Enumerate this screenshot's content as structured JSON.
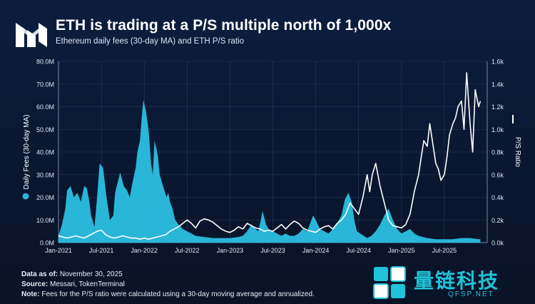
{
  "header": {
    "title": "ETH is trading at a P/S multiple north of 1,000x",
    "subtitle": "Ethereum daily fees (30-day MA) and ETH P/S ratio"
  },
  "footer": {
    "asof_label": "Data as of:",
    "asof_value": "November 30, 2025",
    "source_label": "Source:",
    "source_value": "Messari, TokenTerminal",
    "note_label": "Note:",
    "note_value": "Fees for the P/S ratio were calculated using a 30-day moving average and annualized."
  },
  "watermark": {
    "cn_text": "量链科技",
    "url": "QFSP.NET"
  },
  "colors": {
    "fees_fill": "#29b6d8",
    "ps_line": "#ffffff",
    "background": "#0b1e3f",
    "grid": "#2a3b5c"
  },
  "chart_data": {
    "type": "area",
    "title": "ETH is trading at a P/S multiple north of 1,000x",
    "subtitle": "Ethereum daily fees (30-day MA) and ETH P/S ratio",
    "ylabel": "Daily Fees (30-day MA)",
    "y2label": "P/S Ratio",
    "xlim": [
      2021.0,
      2026.0
    ],
    "ylim": [
      0,
      80
    ],
    "y2lim": [
      0,
      1.6
    ],
    "grid": true,
    "x_ticks": [
      {
        "x": 2021.0,
        "label": "Jan-2021"
      },
      {
        "x": 2021.5,
        "label": "Jul-2021"
      },
      {
        "x": 2022.0,
        "label": "Jan-2022"
      },
      {
        "x": 2022.5,
        "label": "Jul-2022"
      },
      {
        "x": 2023.0,
        "label": "Jan-2023"
      },
      {
        "x": 2023.5,
        "label": "Jul-2023"
      },
      {
        "x": 2024.0,
        "label": "Jan-2024"
      },
      {
        "x": 2024.5,
        "label": "Jul-2024"
      },
      {
        "x": 2025.0,
        "label": "Jan-2025"
      },
      {
        "x": 2025.5,
        "label": "Jul-2025"
      }
    ],
    "y_ticks": [
      {
        "v": 0,
        "label": "0.0M"
      },
      {
        "v": 10,
        "label": "10.0M"
      },
      {
        "v": 20,
        "label": "20.0M"
      },
      {
        "v": 30,
        "label": "30.0M"
      },
      {
        "v": 40,
        "label": "40.0M"
      },
      {
        "v": 50,
        "label": "50.0M"
      },
      {
        "v": 60,
        "label": "60.0M"
      },
      {
        "v": 70,
        "label": "70.0M"
      },
      {
        "v": 80,
        "label": "80.0M"
      }
    ],
    "y2_ticks": [
      {
        "v": 0,
        "label": "0.0k"
      },
      {
        "v": 0.2,
        "label": "0.2k"
      },
      {
        "v": 0.4,
        "label": "0.4k"
      },
      {
        "v": 0.6,
        "label": "0.6k"
      },
      {
        "v": 0.8,
        "label": "0.8k"
      },
      {
        "v": 1.0,
        "label": "1.0k"
      },
      {
        "v": 1.2,
        "label": "1.2k"
      },
      {
        "v": 1.4,
        "label": "1.4k"
      },
      {
        "v": 1.6,
        "label": "1.6k"
      }
    ],
    "legend": [
      {
        "name": "Daily Fees (30-day MA)",
        "marker": "circle",
        "placement": "left-axis"
      },
      {
        "name": "P/S Ratio",
        "marker": "line",
        "placement": "right-axis"
      }
    ],
    "series": [
      {
        "name": "Daily Fees (30-day MA)",
        "axis": "left",
        "type": "area",
        "unit": "M USD",
        "x": [
          2021.0,
          2021.04,
          2021.08,
          2021.1,
          2021.14,
          2021.18,
          2021.22,
          2021.26,
          2021.3,
          2021.33,
          2021.36,
          2021.38,
          2021.42,
          2021.45,
          2021.48,
          2021.52,
          2021.56,
          2021.6,
          2021.64,
          2021.66,
          2021.7,
          2021.72,
          2021.76,
          2021.8,
          2021.83,
          2021.86,
          2021.9,
          2021.92,
          2021.95,
          2021.97,
          2021.99,
          2022.02,
          2022.05,
          2022.08,
          2022.1,
          2022.12,
          2022.14,
          2022.16,
          2022.18,
          2022.22,
          2022.26,
          2022.28,
          2022.3,
          2022.33,
          2022.36,
          2022.4,
          2022.45,
          2022.5,
          2022.55,
          2022.6,
          2022.7,
          2022.8,
          2022.9,
          2023.0,
          2023.1,
          2023.15,
          2023.2,
          2023.25,
          2023.3,
          2023.33,
          2023.36,
          2023.38,
          2023.42,
          2023.45,
          2023.5,
          2023.55,
          2023.6,
          2023.65,
          2023.7,
          2023.75,
          2023.8,
          2023.85,
          2023.9,
          2023.93,
          2023.97,
          2024.0,
          2024.05,
          2024.1,
          2024.15,
          2024.2,
          2024.24,
          2024.27,
          2024.3,
          2024.34,
          2024.38,
          2024.42,
          2024.45,
          2024.48,
          2024.52,
          2024.56,
          2024.6,
          2024.65,
          2024.7,
          2024.75,
          2024.8,
          2024.85,
          2024.9,
          2024.95,
          2025.0,
          2025.05,
          2025.1,
          2025.15,
          2025.2,
          2025.3,
          2025.4,
          2025.5,
          2025.6,
          2025.7,
          2025.8,
          2025.9,
          2025.92
        ],
        "values": [
          3,
          8,
          15,
          23,
          25,
          20,
          22,
          18,
          25,
          24,
          18,
          12,
          7,
          20,
          35,
          33,
          20,
          10,
          12,
          22,
          28,
          31,
          25,
          23,
          20,
          26,
          33,
          40,
          45,
          55,
          63,
          58,
          50,
          35,
          30,
          45,
          42,
          38,
          30,
          25,
          20,
          22,
          18,
          15,
          10,
          8,
          6,
          5,
          4,
          3,
          2.5,
          2,
          2,
          2,
          2.5,
          3,
          5,
          8,
          6,
          5,
          10,
          14,
          8,
          6,
          5,
          4,
          3,
          4,
          3,
          3,
          4,
          6,
          5,
          8,
          12,
          10,
          6,
          5,
          4,
          6,
          8,
          10,
          12,
          19,
          22,
          18,
          10,
          5,
          4,
          3,
          2,
          3,
          5,
          8,
          12,
          15,
          10,
          6,
          4,
          5,
          6,
          4,
          3,
          2,
          1.5,
          1.5,
          1.5,
          2,
          2,
          1.5,
          1.5
        ]
      },
      {
        "name": "P/S Ratio",
        "axis": "right",
        "type": "line",
        "unit": "x (thousands)",
        "x": [
          2021.0,
          2021.05,
          2021.1,
          2021.15,
          2021.2,
          2021.25,
          2021.3,
          2021.35,
          2021.4,
          2021.45,
          2021.5,
          2021.55,
          2021.6,
          2021.65,
          2021.7,
          2021.75,
          2021.8,
          2021.85,
          2021.9,
          2021.95,
          2022.0,
          2022.05,
          2022.1,
          2022.15,
          2022.2,
          2022.25,
          2022.3,
          2022.35,
          2022.4,
          2022.45,
          2022.5,
          2022.55,
          2022.6,
          2022.65,
          2022.7,
          2022.75,
          2022.8,
          2022.85,
          2022.9,
          2022.95,
          2023.0,
          2023.05,
          2023.1,
          2023.15,
          2023.2,
          2023.25,
          2023.3,
          2023.35,
          2023.4,
          2023.45,
          2023.5,
          2023.55,
          2023.6,
          2023.65,
          2023.7,
          2023.75,
          2023.8,
          2023.85,
          2023.9,
          2023.95,
          2024.0,
          2024.05,
          2024.1,
          2024.15,
          2024.2,
          2024.25,
          2024.3,
          2024.35,
          2024.4,
          2024.45,
          2024.5,
          2024.55,
          2024.6,
          2024.63,
          2024.66,
          2024.7,
          2024.75,
          2024.8,
          2024.85,
          2024.9,
          2024.95,
          2025.0,
          2025.05,
          2025.1,
          2025.15,
          2025.2,
          2025.23,
          2025.26,
          2025.3,
          2025.33,
          2025.36,
          2025.4,
          2025.43,
          2025.46,
          2025.5,
          2025.53,
          2025.56,
          2025.6,
          2025.63,
          2025.66,
          2025.7,
          2025.73,
          2025.76,
          2025.8,
          2025.83,
          2025.86,
          2025.9,
          2025.92
        ],
        "values": [
          0.06,
          0.05,
          0.04,
          0.05,
          0.06,
          0.05,
          0.04,
          0.06,
          0.08,
          0.1,
          0.11,
          0.07,
          0.05,
          0.04,
          0.05,
          0.06,
          0.05,
          0.04,
          0.04,
          0.03,
          0.04,
          0.03,
          0.04,
          0.05,
          0.06,
          0.07,
          0.1,
          0.12,
          0.14,
          0.17,
          0.2,
          0.17,
          0.13,
          0.19,
          0.21,
          0.2,
          0.18,
          0.15,
          0.12,
          0.1,
          0.09,
          0.11,
          0.14,
          0.12,
          0.17,
          0.15,
          0.13,
          0.12,
          0.1,
          0.11,
          0.1,
          0.13,
          0.16,
          0.12,
          0.16,
          0.19,
          0.17,
          0.13,
          0.11,
          0.1,
          0.09,
          0.12,
          0.14,
          0.15,
          0.12,
          0.17,
          0.2,
          0.25,
          0.35,
          0.3,
          0.25,
          0.4,
          0.6,
          0.45,
          0.6,
          0.7,
          0.5,
          0.35,
          0.2,
          0.15,
          0.14,
          0.13,
          0.16,
          0.25,
          0.45,
          0.6,
          0.75,
          0.9,
          0.85,
          1.05,
          0.9,
          0.7,
          0.65,
          0.55,
          0.6,
          0.75,
          0.95,
          1.05,
          1.1,
          1.2,
          1.25,
          1.0,
          1.5,
          1.05,
          0.8,
          1.35,
          1.2,
          1.25
        ]
      }
    ]
  }
}
